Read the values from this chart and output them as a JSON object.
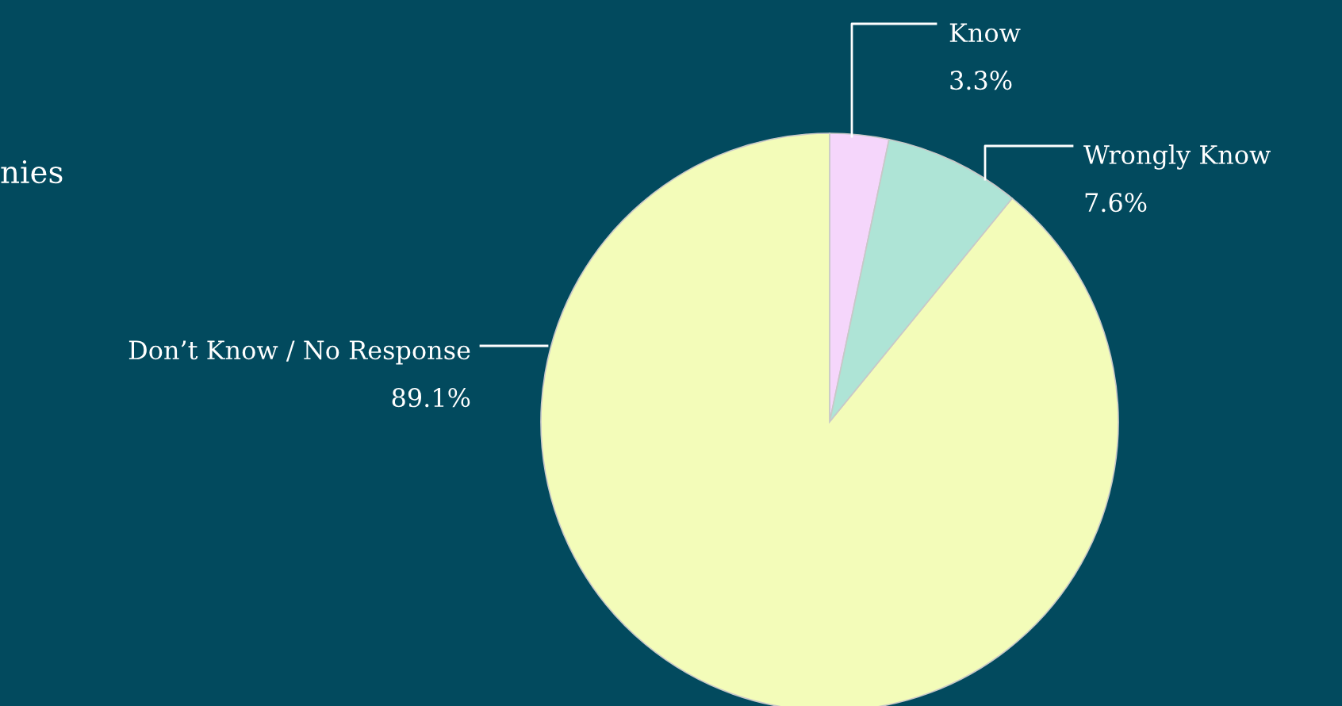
{
  "chart_data": {
    "type": "pie",
    "title": "nies",
    "categories": [
      "Know",
      "Wrongly Know",
      "Don’t Know / No Response"
    ],
    "values": [
      3.3,
      7.6,
      89.1
    ],
    "value_labels": [
      "3.3%",
      "7.6%",
      "89.1%"
    ],
    "colors": [
      "#f5d6fb",
      "#aee4d6",
      "#f3fcb9"
    ],
    "legend": false
  }
}
